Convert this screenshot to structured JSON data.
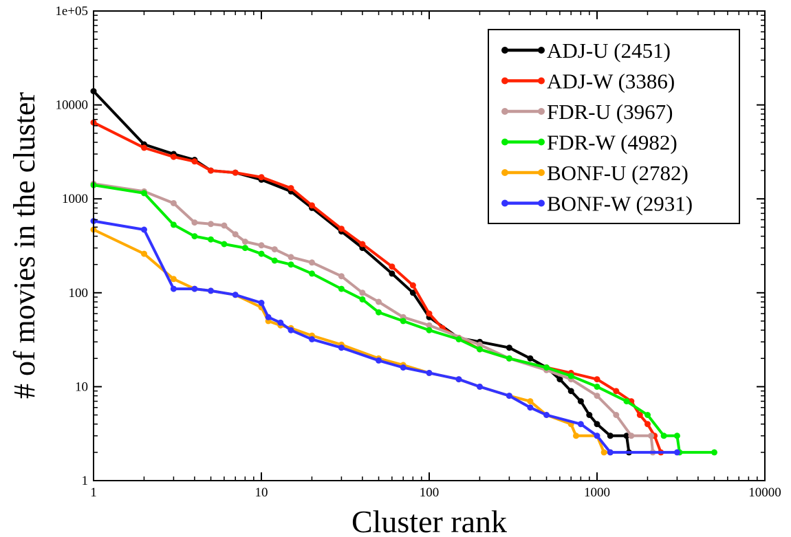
{
  "chart_data": {
    "type": "line",
    "title": "",
    "xlabel": "Cluster rank",
    "ylabel": "# of movies in the cluster",
    "xscale": "log",
    "yscale": "log",
    "xlim": [
      1,
      10000
    ],
    "ylim": [
      1,
      100000
    ],
    "x_tick_labels": [
      "1",
      "10",
      "100",
      "1000",
      "10000"
    ],
    "y_tick_labels": [
      "1",
      "10",
      "100",
      "1000",
      "10000",
      "1e+05"
    ],
    "grid": false,
    "legend_position": "top-right",
    "series": [
      {
        "name": "ADJ-U (2451)",
        "color": "#000000",
        "points": [
          [
            1,
            14000
          ],
          [
            2,
            3800
          ],
          [
            3,
            3000
          ],
          [
            4,
            2600
          ],
          [
            5,
            2000
          ],
          [
            7,
            1900
          ],
          [
            10,
            1600
          ],
          [
            15,
            1200
          ],
          [
            20,
            800
          ],
          [
            30,
            450
          ],
          [
            40,
            300
          ],
          [
            60,
            160
          ],
          [
            80,
            100
          ],
          [
            100,
            55
          ],
          [
            150,
            33
          ],
          [
            200,
            30
          ],
          [
            300,
            26
          ],
          [
            400,
            20
          ],
          [
            500,
            16
          ],
          [
            600,
            12
          ],
          [
            700,
            9
          ],
          [
            800,
            7
          ],
          [
            900,
            5
          ],
          [
            1000,
            4
          ],
          [
            1200,
            3
          ],
          [
            1500,
            3
          ],
          [
            1550,
            2
          ]
        ]
      },
      {
        "name": "ADJ-W (3386)",
        "color": "#ff2200",
        "points": [
          [
            1,
            6500
          ],
          [
            2,
            3500
          ],
          [
            3,
            2800
          ],
          [
            4,
            2500
          ],
          [
            5,
            2000
          ],
          [
            7,
            1900
          ],
          [
            10,
            1700
          ],
          [
            15,
            1300
          ],
          [
            20,
            850
          ],
          [
            30,
            480
          ],
          [
            40,
            330
          ],
          [
            60,
            190
          ],
          [
            80,
            120
          ],
          [
            100,
            60
          ],
          [
            120,
            42
          ],
          [
            150,
            33
          ],
          [
            200,
            25
          ],
          [
            300,
            20
          ],
          [
            500,
            16
          ],
          [
            700,
            14
          ],
          [
            1000,
            12
          ],
          [
            1300,
            9
          ],
          [
            1600,
            7
          ],
          [
            1800,
            5
          ],
          [
            2000,
            4
          ],
          [
            2200,
            3
          ],
          [
            2400,
            2
          ]
        ]
      },
      {
        "name": "FDR-U (3967)",
        "color": "#c49a9a",
        "points": [
          [
            1,
            1450
          ],
          [
            2,
            1200
          ],
          [
            3,
            900
          ],
          [
            4,
            560
          ],
          [
            5,
            540
          ],
          [
            6,
            520
          ],
          [
            7,
            420
          ],
          [
            8,
            350
          ],
          [
            10,
            320
          ],
          [
            12,
            290
          ],
          [
            15,
            240
          ],
          [
            20,
            210
          ],
          [
            30,
            150
          ],
          [
            40,
            100
          ],
          [
            50,
            80
          ],
          [
            70,
            55
          ],
          [
            100,
            45
          ],
          [
            200,
            28
          ],
          [
            300,
            20
          ],
          [
            500,
            15
          ],
          [
            700,
            12
          ],
          [
            1000,
            8
          ],
          [
            1300,
            5
          ],
          [
            1600,
            3
          ],
          [
            2100,
            3
          ],
          [
            2150,
            2
          ]
        ]
      },
      {
        "name": "FDR-W (4982)",
        "color": "#00ee00",
        "points": [
          [
            1,
            1400
          ],
          [
            2,
            1150
          ],
          [
            3,
            530
          ],
          [
            4,
            400
          ],
          [
            5,
            370
          ],
          [
            6,
            330
          ],
          [
            8,
            300
          ],
          [
            10,
            260
          ],
          [
            12,
            220
          ],
          [
            15,
            200
          ],
          [
            20,
            160
          ],
          [
            30,
            110
          ],
          [
            40,
            85
          ],
          [
            50,
            62
          ],
          [
            70,
            50
          ],
          [
            100,
            40
          ],
          [
            150,
            32
          ],
          [
            200,
            25
          ],
          [
            300,
            20
          ],
          [
            500,
            16
          ],
          [
            700,
            13
          ],
          [
            1000,
            10
          ],
          [
            1500,
            7
          ],
          [
            2000,
            5
          ],
          [
            2500,
            3
          ],
          [
            3000,
            3
          ],
          [
            3100,
            2
          ],
          [
            5000,
            2
          ]
        ]
      },
      {
        "name": "BONF-U (2782)",
        "color": "#ffaa00",
        "points": [
          [
            1,
            470
          ],
          [
            2,
            260
          ],
          [
            3,
            140
          ],
          [
            4,
            110
          ],
          [
            5,
            105
          ],
          [
            7,
            95
          ],
          [
            10,
            70
          ],
          [
            11,
            50
          ],
          [
            13,
            45
          ],
          [
            15,
            42
          ],
          [
            20,
            35
          ],
          [
            30,
            28
          ],
          [
            50,
            20
          ],
          [
            70,
            17
          ],
          [
            100,
            14
          ],
          [
            150,
            12
          ],
          [
            200,
            10
          ],
          [
            300,
            8
          ],
          [
            400,
            7
          ],
          [
            500,
            5
          ],
          [
            700,
            4
          ],
          [
            750,
            3
          ],
          [
            1000,
            3
          ],
          [
            1100,
            2
          ],
          [
            1200,
            2
          ]
        ]
      },
      {
        "name": "BONF-W (2931)",
        "color": "#3333ff",
        "points": [
          [
            1,
            580
          ],
          [
            2,
            470
          ],
          [
            3,
            110
          ],
          [
            4,
            110
          ],
          [
            5,
            105
          ],
          [
            7,
            95
          ],
          [
            10,
            78
          ],
          [
            11,
            55
          ],
          [
            13,
            48
          ],
          [
            15,
            40
          ],
          [
            20,
            32
          ],
          [
            30,
            26
          ],
          [
            50,
            19
          ],
          [
            70,
            16
          ],
          [
            100,
            14
          ],
          [
            150,
            12
          ],
          [
            200,
            10
          ],
          [
            300,
            8
          ],
          [
            400,
            6
          ],
          [
            500,
            5
          ],
          [
            800,
            4
          ],
          [
            1000,
            3
          ],
          [
            1200,
            2
          ],
          [
            3000,
            2
          ]
        ]
      }
    ]
  }
}
